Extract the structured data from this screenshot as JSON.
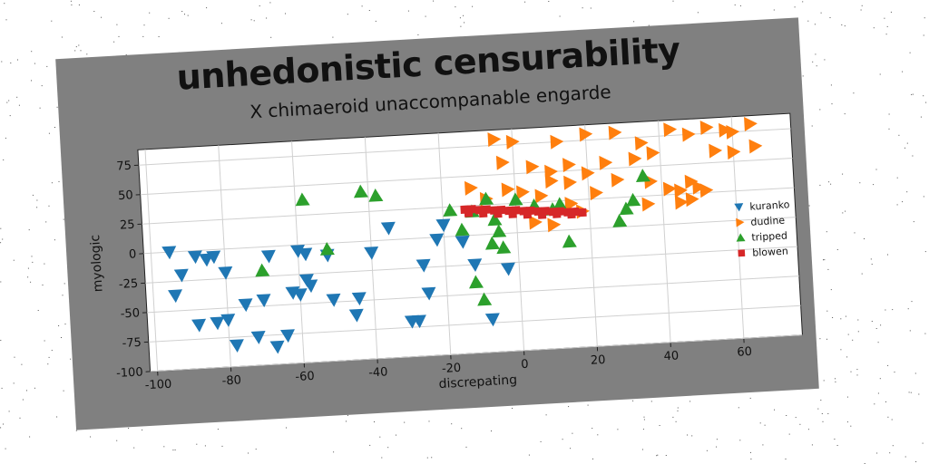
{
  "chart_data": {
    "type": "scatter",
    "title": "unhedonistic censurability",
    "subtitle": "X chimaeroid unaccompanable engarde",
    "xlabel": "discrepating",
    "ylabel": "myologic",
    "xlim": [
      -102,
      76
    ],
    "ylim": [
      -100,
      88
    ],
    "xticks": [
      -100,
      -80,
      -60,
      -40,
      -20,
      0,
      20,
      40,
      60
    ],
    "yticks": [
      -100,
      -75,
      -50,
      -25,
      0,
      25,
      50,
      75
    ],
    "grid": true,
    "legend_position": "right",
    "series": [
      {
        "name": "kuranko",
        "marker": "triangle-down",
        "color": "#1f77b4",
        "points": [
          [
            -95,
            0
          ],
          [
            -92,
            -20
          ],
          [
            -94,
            -37
          ],
          [
            -88,
            -5
          ],
          [
            -85,
            -8
          ],
          [
            -83,
            -6
          ],
          [
            -80,
            -20
          ],
          [
            -88,
            -63
          ],
          [
            -83,
            -62
          ],
          [
            -80,
            -60
          ],
          [
            -78,
            -82
          ],
          [
            -75,
            -48
          ],
          [
            -72,
            -76
          ],
          [
            -70,
            -45
          ],
          [
            -68,
            -8
          ],
          [
            -67,
            -85
          ],
          [
            -64,
            -76
          ],
          [
            -62,
            -40
          ],
          [
            -60,
            -42
          ],
          [
            -58,
            -30
          ],
          [
            -57,
            -35
          ],
          [
            -60,
            -5
          ],
          [
            -58,
            -8
          ],
          [
            -52,
            -10
          ],
          [
            -51,
            -48
          ],
          [
            -45,
            -62
          ],
          [
            -44,
            -48
          ],
          [
            -40,
            -10
          ],
          [
            -35,
            10
          ],
          [
            -30,
            -70
          ],
          [
            -28,
            -70
          ],
          [
            -25,
            -47
          ],
          [
            -26,
            -23
          ],
          [
            -22,
            -2
          ],
          [
            -20,
            10
          ],
          [
            -15,
            -5
          ],
          [
            -12,
            -25
          ],
          [
            -8,
            -72
          ],
          [
            -3,
            -30
          ]
        ]
      },
      {
        "name": "dudine",
        "marker": "triangle-right",
        "color": "#ff7f0e",
        "points": [
          [
            -5,
            80
          ],
          [
            0,
            77
          ],
          [
            12,
            75
          ],
          [
            20,
            80
          ],
          [
            28,
            80
          ],
          [
            35,
            70
          ],
          [
            43,
            80
          ],
          [
            48,
            75
          ],
          [
            53,
            80
          ],
          [
            58,
            77
          ],
          [
            60,
            75
          ],
          [
            65,
            81
          ],
          [
            -3,
            60
          ],
          [
            5,
            55
          ],
          [
            10,
            50
          ],
          [
            15,
            55
          ],
          [
            20,
            47
          ],
          [
            25,
            55
          ],
          [
            33,
            57
          ],
          [
            38,
            61
          ],
          [
            55,
            60
          ],
          [
            60,
            58
          ],
          [
            66,
            62
          ],
          [
            -12,
            40
          ],
          [
            -8,
            30
          ],
          [
            -2,
            37
          ],
          [
            2,
            34
          ],
          [
            7,
            30
          ],
          [
            10,
            42
          ],
          [
            15,
            40
          ],
          [
            28,
            40
          ],
          [
            37,
            37
          ],
          [
            42,
            30
          ],
          [
            45,
            28
          ],
          [
            48,
            35
          ],
          [
            50,
            30
          ],
          [
            52,
            27
          ],
          [
            48,
            20
          ],
          [
            45,
            18
          ],
          [
            36,
            18
          ],
          [
            18,
            15
          ],
          [
            10,
            5
          ],
          [
            5,
            8
          ],
          [
            15,
            22
          ],
          [
            22,
            30
          ]
        ]
      },
      {
        "name": "tripped",
        "marker": "triangle-up",
        "color": "#2ca02c",
        "points": [
          [
            -58,
            38
          ],
          [
            -42,
            42
          ],
          [
            -38,
            38
          ],
          [
            -70,
            -20
          ],
          [
            -52,
            -5
          ],
          [
            -18,
            22
          ],
          [
            -15,
            5
          ],
          [
            -12,
            20
          ],
          [
            -8,
            30
          ],
          [
            -6,
            12
          ],
          [
            -5,
            2
          ],
          [
            -7,
            -8
          ],
          [
            -4,
            -12
          ],
          [
            -12,
            -40
          ],
          [
            -10,
            -55
          ],
          [
            0,
            28
          ],
          [
            5,
            22
          ],
          [
            10,
            18
          ],
          [
            12,
            22
          ],
          [
            14,
            -10
          ],
          [
            28,
            5
          ],
          [
            30,
            15
          ],
          [
            32,
            22
          ],
          [
            35,
            42
          ]
        ]
      },
      {
        "name": "blowen",
        "marker": "square",
        "color": "#d62728",
        "points": [
          [
            -14,
            22
          ],
          [
            -12,
            22
          ],
          [
            -10,
            21
          ],
          [
            -8,
            21
          ],
          [
            -6,
            20
          ],
          [
            -4,
            20
          ],
          [
            -2,
            19
          ],
          [
            0,
            19
          ],
          [
            2,
            18
          ],
          [
            4,
            18
          ],
          [
            6,
            17
          ],
          [
            8,
            17
          ],
          [
            10,
            16
          ],
          [
            12,
            16
          ],
          [
            14,
            15
          ],
          [
            16,
            15
          ],
          [
            18,
            14
          ],
          [
            -13,
            19
          ],
          [
            -9,
            18
          ],
          [
            -5,
            17
          ],
          [
            -1,
            16
          ],
          [
            3,
            15
          ],
          [
            7,
            14
          ],
          [
            11,
            14
          ],
          [
            15,
            13
          ]
        ]
      }
    ]
  }
}
